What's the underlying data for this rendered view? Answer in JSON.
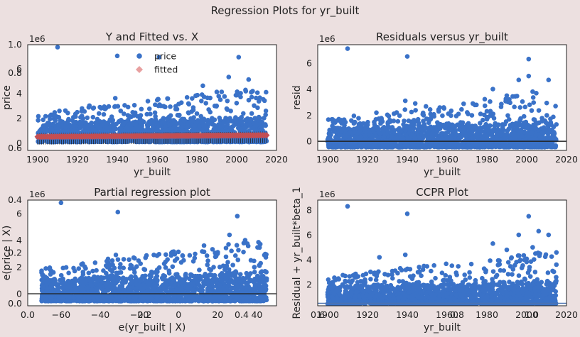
{
  "suptitle": "Regression Plots for yr_built",
  "colors": {
    "point": "#3a72c8",
    "fitted": "#c44e52",
    "fitted_marker": "#e8a0a0",
    "background": "#ece0e0",
    "line": "#222222",
    "ccpr_line": "#4c72b0"
  },
  "chart_data": [
    {
      "id": "fit",
      "type": "scatter",
      "title": "Y and Fitted vs. X",
      "xlabel": "yr_built",
      "ylabel": "price",
      "scale_label": "1e6",
      "xlim": [
        1895,
        2020
      ],
      "ylim": [
        -0.6,
        7.9
      ],
      "xticks": [
        1900,
        1920,
        1940,
        1960,
        1980,
        2000,
        2020
      ],
      "yticks": [
        0,
        2,
        4,
        6
      ],
      "legend": {
        "placement": "top-center",
        "entries": [
          "price",
          "fitted"
        ]
      },
      "series": [
        {
          "name": "price",
          "x_range": [
            1900,
            2015
          ],
          "band": [
            0.08,
            1.6
          ],
          "outliers": [
            [
              1910,
              7.7
            ],
            [
              1940,
              7.0
            ],
            [
              1961,
              6.9
            ],
            [
              2001,
              6.9
            ],
            [
              1996,
              5.3
            ],
            [
              2006,
              5.1
            ],
            [
              1983,
              4.6
            ],
            [
              1990,
              4.1
            ],
            [
              2002,
              4.0
            ],
            [
              1926,
              3.0
            ],
            [
              1939,
              3.6
            ],
            [
              2014,
              3.4
            ]
          ]
        },
        {
          "name": "fitted",
          "x_range": [
            1900,
            2015
          ],
          "y_range": [
            0.5,
            0.62
          ]
        }
      ],
      "stray_ticks": [
        {
          "label": "1.0",
          "side": "left",
          "position": "top"
        },
        {
          "label": "0.8",
          "side": "left",
          "position": "upper"
        },
        {
          "label": "0.6",
          "side": "left",
          "position": "bottom"
        }
      ]
    },
    {
      "id": "resid",
      "type": "scatter",
      "title": "Residuals versus yr_built",
      "xlabel": "yr_built",
      "ylabel": "resid",
      "scale_label": "1e6",
      "xlim": [
        1895,
        2020
      ],
      "ylim": [
        -0.7,
        7.4
      ],
      "xticks": [
        1900,
        1920,
        1940,
        1960,
        1980,
        2000,
        2020
      ],
      "yticks": [
        0,
        2,
        4,
        6
      ],
      "hline": 0,
      "series": [
        {
          "name": "resid",
          "x_range": [
            1900,
            2015
          ],
          "band": [
            -0.45,
            1.0
          ],
          "outliers": [
            [
              1910,
              7.1
            ],
            [
              1940,
              6.5
            ],
            [
              2001,
              6.3
            ],
            [
              1996,
              4.7
            ],
            [
              2001,
              5.0
            ],
            [
              2011,
              4.7
            ],
            [
              1983,
              4.0
            ],
            [
              1990,
              3.5
            ],
            [
              2003,
              3.8
            ],
            [
              1939,
              3.1
            ],
            [
              1944,
              2.9
            ]
          ]
        }
      ]
    },
    {
      "id": "partial",
      "type": "scatter",
      "title": "Partial regression plot",
      "xlabel": "e(yr_built | X)",
      "ylabel": "e(price | X)",
      "scale_label": "1e6",
      "xlim": [
        -77,
        50
      ],
      "ylim": [
        -0.9,
        7.0
      ],
      "xticks": [
        -60,
        -40,
        -20,
        0,
        20,
        40
      ],
      "yticks": [
        0,
        2,
        4,
        6
      ],
      "hline": 0,
      "series": [
        {
          "name": "e(price | X)",
          "x_range": [
            -70,
            45
          ],
          "band": [
            -0.55,
            1.1
          ],
          "outliers": [
            [
              -60,
              6.8
            ],
            [
              -31,
              6.1
            ],
            [
              30,
              5.8
            ],
            [
              26,
              4.4
            ],
            [
              34,
              4.0
            ],
            [
              13,
              3.6
            ],
            [
              20,
              3.1
            ],
            [
              -32,
              2.9
            ],
            [
              -36,
              2.6
            ]
          ]
        }
      ],
      "stray_ticks": [
        {
          "label": "0.4",
          "side": "left",
          "position": "top"
        },
        {
          "label": "0.2",
          "side": "left",
          "position": "middle"
        },
        {
          "label": "0.0",
          "side": "left",
          "position": "bottom"
        },
        {
          "label": "0.0",
          "side": "bottom",
          "position": "left"
        },
        {
          "label": "0.2",
          "side": "bottom",
          "position": "left-center"
        },
        {
          "label": "0.4",
          "side": "bottom",
          "position": "right"
        }
      ]
    },
    {
      "id": "ccpr",
      "type": "scatter",
      "title": "CCPR Plot",
      "xlabel": "yr_built",
      "ylabel": "Residual + yr_built*beta_1",
      "scale_label": "1e6",
      "xlim": [
        1895,
        2020
      ],
      "ylim": [
        0.3,
        8.8
      ],
      "xticks": [
        1900,
        1920,
        1940,
        1960,
        1980,
        2000,
        2020
      ],
      "yticks": [
        2,
        4,
        6,
        8
      ],
      "hline": 0.5,
      "series": [
        {
          "name": "CCPR",
          "x_range": [
            1900,
            2015
          ],
          "band": [
            0.45,
            1.85
          ],
          "outliers": [
            [
              1910,
              8.3
            ],
            [
              1940,
              7.7
            ],
            [
              2001,
              7.5
            ],
            [
              1996,
              6.0
            ],
            [
              2006,
              6.3
            ],
            [
              2011,
              6.0
            ],
            [
              1983,
              5.3
            ],
            [
              1990,
              4.8
            ],
            [
              2003,
              5.0
            ],
            [
              1939,
              4.4
            ],
            [
              1926,
              4.2
            ]
          ]
        }
      ],
      "stray_ticks": [
        {
          "label": "0.6",
          "side": "bottom",
          "position": "left"
        },
        {
          "label": "0.8",
          "side": "bottom",
          "position": "center"
        },
        {
          "label": "1.0",
          "side": "bottom",
          "position": "right"
        }
      ]
    }
  ]
}
